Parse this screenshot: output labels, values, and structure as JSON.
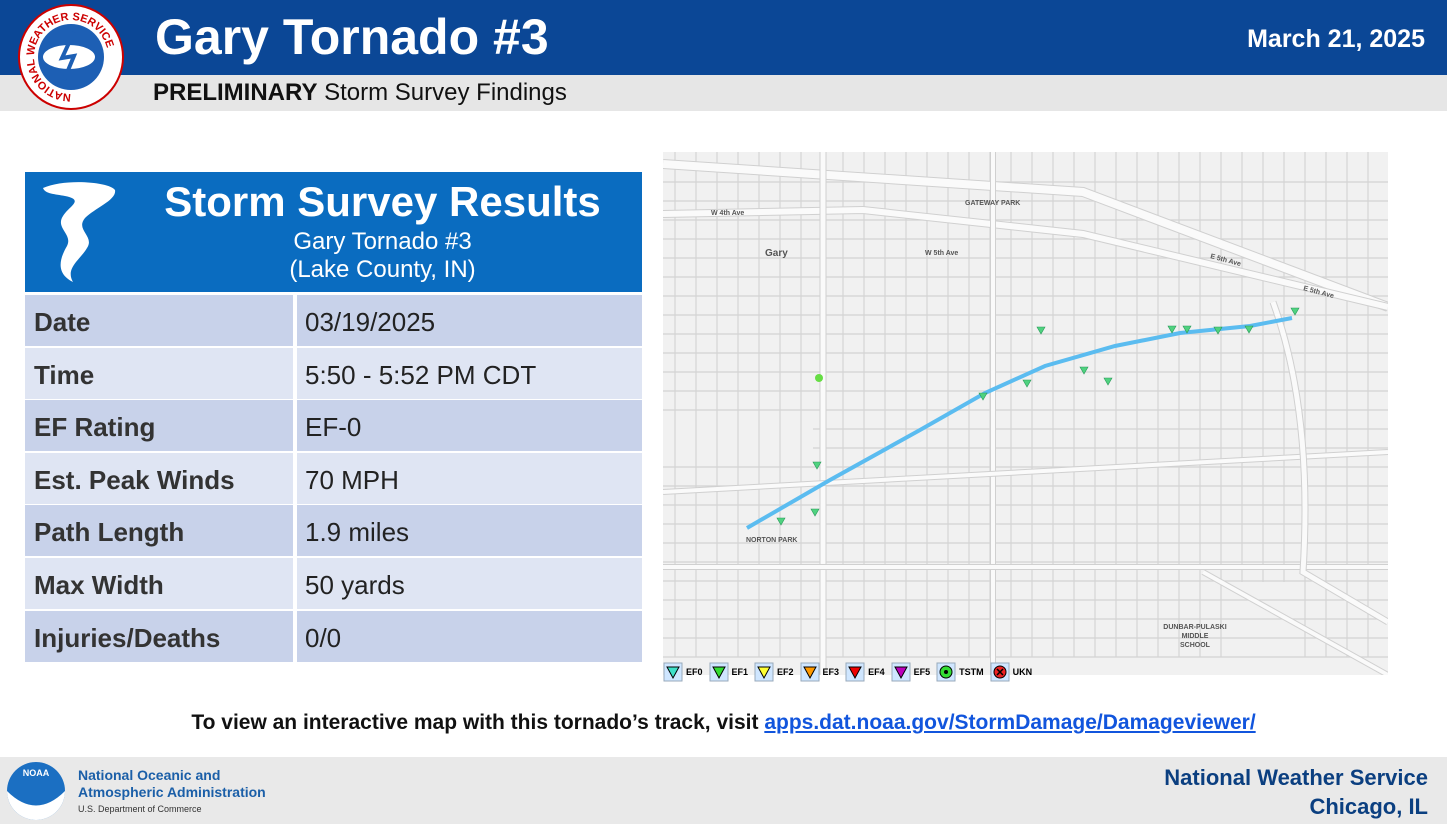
{
  "header": {
    "logo_text": "NATIONAL WEATHER SERVICE",
    "title": "Gary Tornado #3",
    "date": "March 21, 2025",
    "subtitle_bold": "PRELIMINARY",
    "subtitle": "Storm Survey Findings"
  },
  "results": {
    "title": "Storm Survey Results",
    "name": "Gary Tornado #3",
    "county": "(Lake County, IN)",
    "rows": [
      [
        "Date",
        "03/19/2025"
      ],
      [
        "Time",
        "5:50 - 5:52 PM CDT"
      ],
      [
        "EF Rating",
        "EF-0"
      ],
      [
        "Est. Peak Winds",
        "70 MPH"
      ],
      [
        "Path Length",
        "1.9 miles"
      ],
      [
        "Max Width",
        "50 yards"
      ],
      [
        "Injuries/Deaths",
        "0/0"
      ]
    ]
  },
  "map": {
    "labels": [
      "W 4th Ave",
      "GATEWAY PARK",
      "Gary",
      "W 5th Ave",
      "E 5th Ave",
      "E 5th Ave",
      "NORTON PARK",
      "DUNBAR-PULASKI",
      "MIDDLE",
      "SCHOOL"
    ],
    "legend": [
      {
        "name": "EF0",
        "color": "#3fe0c8"
      },
      {
        "name": "EF1",
        "color": "#33dd33"
      },
      {
        "name": "EF2",
        "color": "#ffff33"
      },
      {
        "name": "EF3",
        "color": "#ff9900"
      },
      {
        "name": "EF4",
        "color": "#ee0000"
      },
      {
        "name": "EF5",
        "color": "#bb00bb"
      },
      {
        "name": "TSTM",
        "color": "#33dd33"
      },
      {
        "name": "UKN",
        "color": "#ee2222"
      }
    ]
  },
  "footer": {
    "visit_text": "To view an interactive map with this tornado’s track, visit",
    "link": "apps.dat.noaa.gov/StormDamage/Damageviewer/",
    "noaa_logo": "NOAA",
    "noaa_line1": "National Oceanic and",
    "noaa_line2": "Atmospheric Administration",
    "noaa_line3": "U.S. Department of Commerce",
    "office": "National Weather Service",
    "city": "Chicago, IL"
  }
}
